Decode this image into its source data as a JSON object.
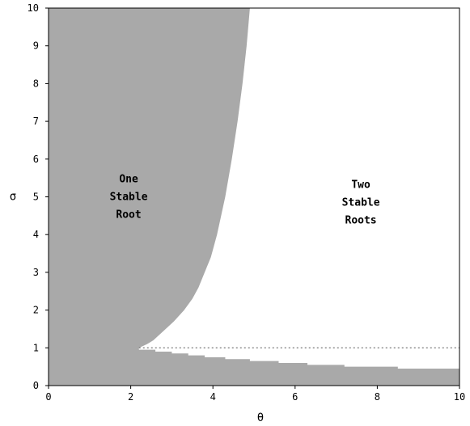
{
  "chart_data": {
    "type": "area",
    "xlabel": "θ",
    "ylabel": "σ",
    "xlim": [
      0,
      10
    ],
    "ylim": [
      0,
      10
    ],
    "xticks": [
      0,
      2,
      4,
      6,
      8,
      10
    ],
    "yticks": [
      0,
      1,
      2,
      3,
      4,
      5,
      6,
      7,
      8,
      9,
      10
    ],
    "grid": false,
    "region_color": "#a9a9a9",
    "upper_boundary": {
      "sigma": [
        1.0,
        1.05,
        1.1,
        1.2,
        1.35,
        1.5,
        1.7,
        2.0,
        2.3,
        2.6,
        3.0,
        3.4,
        4.0,
        4.5,
        5.0,
        5.5,
        6.0,
        6.5,
        7.0,
        7.5,
        8.0,
        8.5,
        9.0,
        9.5,
        10.0
      ],
      "theta": [
        2.2,
        2.3,
        2.4,
        2.55,
        2.7,
        2.85,
        3.05,
        3.3,
        3.5,
        3.65,
        3.8,
        3.95,
        4.1,
        4.2,
        4.3,
        4.38,
        4.46,
        4.53,
        4.6,
        4.66,
        4.72,
        4.77,
        4.82,
        4.86,
        4.9
      ]
    },
    "lower_boundary": {
      "theta": [
        2.2,
        2.6,
        3.0,
        3.4,
        3.8,
        4.3,
        4.9,
        5.6,
        6.3,
        7.2,
        8.5,
        10.0
      ],
      "sigma": [
        0.95,
        0.9,
        0.85,
        0.8,
        0.75,
        0.7,
        0.65,
        0.6,
        0.55,
        0.5,
        0.45,
        0.4
      ]
    },
    "reference_line": {
      "y": 1,
      "x_from": 2.2,
      "x_to": 10,
      "style": "dotted"
    },
    "annotations": [
      {
        "lines": [
          "One",
          "Stable",
          "Root"
        ],
        "x": 1.95,
        "y": 5.0
      },
      {
        "lines": [
          "Two",
          "Stable",
          "Roots"
        ],
        "x": 7.6,
        "y": 4.85
      }
    ]
  }
}
